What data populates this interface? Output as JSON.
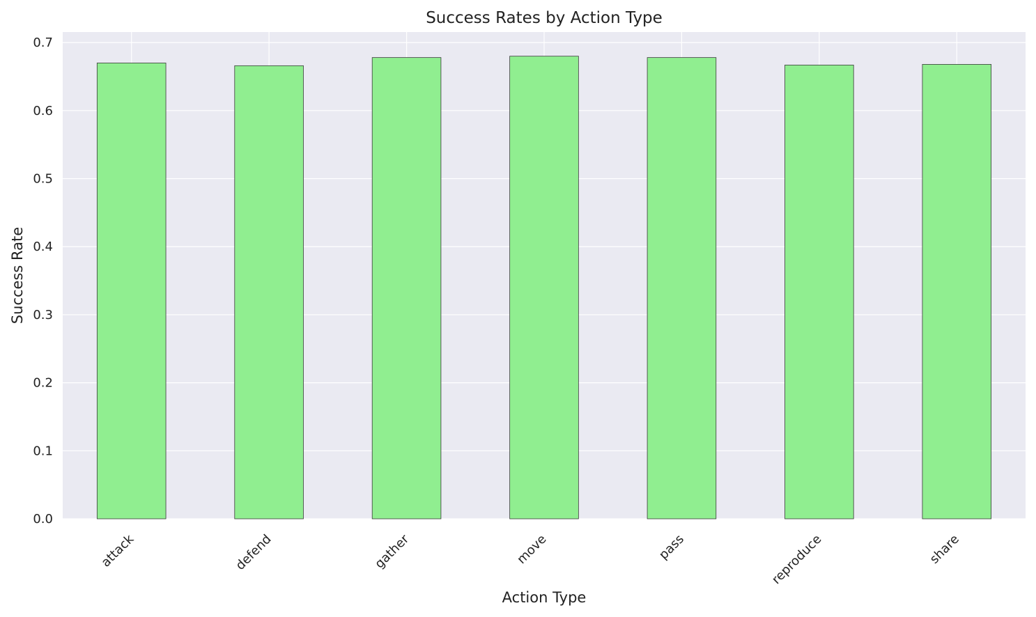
{
  "chart_data": {
    "type": "bar",
    "title": "Success Rates by Action Type",
    "xlabel": "Action Type",
    "ylabel": "Success Rate",
    "categories": [
      "attack",
      "defend",
      "gather",
      "move",
      "pass",
      "reproduce",
      "share"
    ],
    "values": [
      0.67,
      0.666,
      0.678,
      0.68,
      0.678,
      0.667,
      0.668
    ],
    "ylim": [
      0,
      0.7155
    ],
    "yticks": [
      "0.0",
      "0.1",
      "0.2",
      "0.3",
      "0.4",
      "0.5",
      "0.6",
      "0.7"
    ],
    "grid": true,
    "colors": {
      "bar_fill": "#90ee90",
      "bar_edge": "#3a3a3a",
      "plot_background": "#eaeaf2",
      "grid": "#ffffff"
    }
  }
}
